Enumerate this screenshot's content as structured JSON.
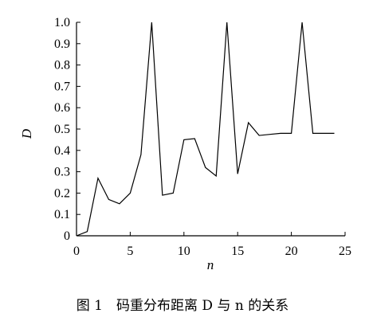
{
  "chart_data": {
    "type": "line",
    "title": "",
    "xlabel": "n",
    "ylabel": "D",
    "xlim": [
      0,
      25
    ],
    "ylim": [
      0,
      1.0
    ],
    "x_ticks": [
      0,
      5,
      10,
      15,
      20,
      25
    ],
    "y_ticks": [
      0,
      0.1,
      0.2,
      0.3,
      0.4,
      0.5,
      0.6,
      0.7,
      0.8,
      0.9,
      1.0
    ],
    "x_tick_labels": [
      "0",
      "5",
      "10",
      "15",
      "20",
      "25"
    ],
    "y_tick_labels": [
      "0",
      "0.1",
      "0.2",
      "0.3",
      "0.4",
      "0.5",
      "0.6",
      "0.7",
      "0.8",
      "0.9",
      "1.0"
    ],
    "grid": false,
    "legend": "none",
    "line_color": "#000000",
    "series": [
      {
        "x": [
          0,
          1,
          2,
          3,
          4,
          5,
          6,
          7,
          8,
          9,
          10,
          11,
          12,
          13,
          14,
          15,
          16,
          17,
          18,
          19,
          20,
          21,
          22,
          23,
          24
        ],
        "values": [
          0,
          0.02,
          0.27,
          0.17,
          0.15,
          0.2,
          0.38,
          1.0,
          0.19,
          0.2,
          0.45,
          0.455,
          0.32,
          0.28,
          1.0,
          0.29,
          0.53,
          0.47,
          0.475,
          0.48,
          0.48,
          1.0,
          0.48,
          0.48,
          0.48
        ]
      }
    ]
  },
  "caption": "图 1　码重分布距离 D 与 n 的关系"
}
